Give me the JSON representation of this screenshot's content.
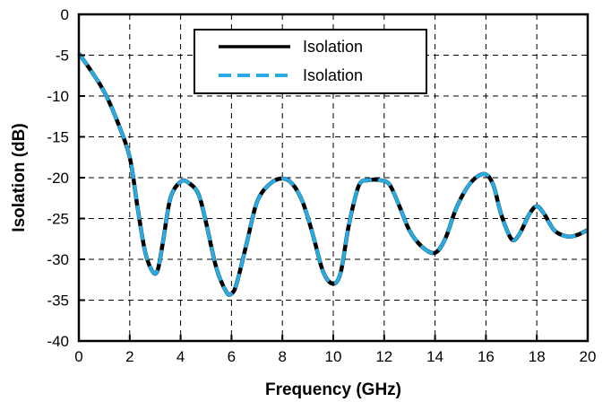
{
  "chart_data": {
    "type": "line",
    "title": "",
    "xlabel": "Frequency (GHz)",
    "ylabel": "Isolation (dB)",
    "xlim": [
      0,
      20
    ],
    "ylim": [
      -40,
      0
    ],
    "xticks": [
      0,
      2,
      4,
      6,
      8,
      10,
      12,
      14,
      16,
      18,
      20
    ],
    "yticks": [
      0,
      -5,
      -10,
      -15,
      -20,
      -25,
      -30,
      -35,
      -40
    ],
    "grid": true,
    "grid_style": "dashed",
    "legend_position": "top-center",
    "series": [
      {
        "name": "Isolation",
        "color": "#000000",
        "style": "solid",
        "x": [
          0,
          0.5,
          1,
          1.5,
          2,
          2.3,
          2.6,
          2.9,
          3.1,
          3.3,
          3.6,
          4,
          4.3,
          4.7,
          5,
          5.4,
          5.8,
          6,
          6.2,
          6.6,
          7,
          7.5,
          8,
          8.4,
          8.8,
          9.2,
          9.6,
          10,
          10.3,
          10.6,
          11,
          11.4,
          11.8,
          12.2,
          12.6,
          13,
          13.5,
          14,
          14.4,
          14.8,
          15.2,
          15.6,
          16,
          16.3,
          16.6,
          17,
          17.3,
          17.7,
          18,
          18.3,
          18.7,
          19.2,
          19.6,
          20
        ],
        "values": [
          -4.8,
          -7,
          -9.5,
          -13,
          -17.5,
          -23.5,
          -29,
          -31.5,
          -31.3,
          -28,
          -22.5,
          -20.5,
          -20.6,
          -22,
          -25.5,
          -31,
          -34,
          -34.2,
          -33,
          -28,
          -23,
          -20.8,
          -20.1,
          -20.8,
          -23,
          -27,
          -31.5,
          -33,
          -31.5,
          -26,
          -21,
          -20.3,
          -20.3,
          -20.8,
          -23.5,
          -26.5,
          -28.5,
          -29.2,
          -27.5,
          -24,
          -21.5,
          -20,
          -19.6,
          -21,
          -24.5,
          -27.5,
          -27,
          -24.5,
          -23.5,
          -24.5,
          -26.5,
          -27.2,
          -27,
          -26.4
        ]
      },
      {
        "name": "Isolation",
        "color": "#29abe2",
        "style": "dashed",
        "x": [
          0,
          0.5,
          1,
          1.5,
          2,
          2.3,
          2.6,
          2.9,
          3.1,
          3.3,
          3.6,
          4,
          4.3,
          4.7,
          5,
          5.4,
          5.8,
          6,
          6.2,
          6.6,
          7,
          7.5,
          8,
          8.4,
          8.8,
          9.2,
          9.6,
          10,
          10.3,
          10.6,
          11,
          11.4,
          11.8,
          12.2,
          12.6,
          13,
          13.5,
          14,
          14.4,
          14.8,
          15.2,
          15.6,
          16,
          16.3,
          16.6,
          17,
          17.3,
          17.7,
          18,
          18.3,
          18.7,
          19.2,
          19.6,
          20
        ],
        "values": [
          -4.8,
          -7,
          -9.5,
          -13,
          -17.5,
          -23.5,
          -29,
          -31.5,
          -31.3,
          -28,
          -22.5,
          -20.5,
          -20.6,
          -22,
          -25.5,
          -31,
          -34,
          -34.2,
          -33,
          -28,
          -23,
          -20.8,
          -20.1,
          -20.8,
          -23,
          -27,
          -31.5,
          -33,
          -31.5,
          -26,
          -21,
          -20.3,
          -20.3,
          -20.8,
          -23.5,
          -26.5,
          -28.5,
          -29.2,
          -27.5,
          -24,
          -21.5,
          -20,
          -19.6,
          -21,
          -24.5,
          -27.5,
          -27,
          -24.5,
          -23.5,
          -24.5,
          -26.5,
          -27.2,
          -27,
          -26.4
        ]
      }
    ]
  }
}
